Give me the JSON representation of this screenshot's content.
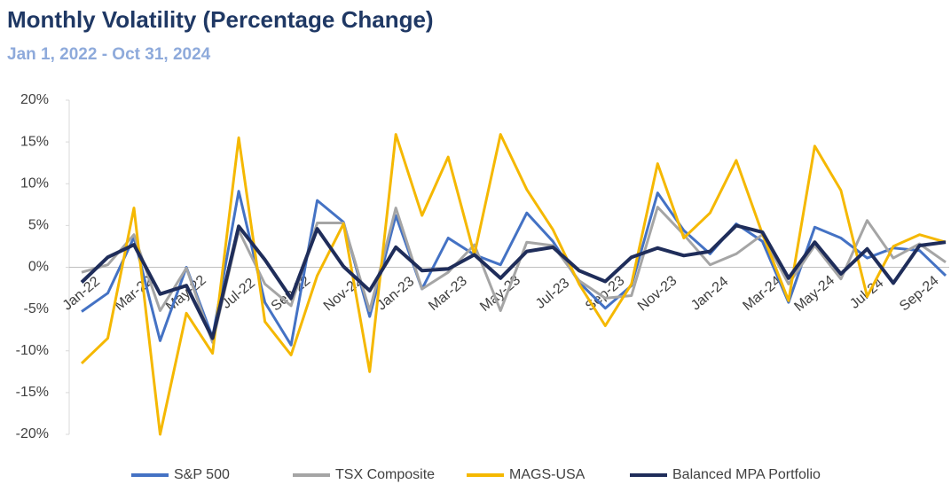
{
  "chart_data": {
    "type": "line",
    "title": "Monthly Volatility (Percentage Change)",
    "subtitle": "Jan 1, 2022 - Oct 31, 2024",
    "categories": [
      "Jan-22",
      null,
      "Mar-22",
      null,
      "May-22",
      null,
      "Jul-22",
      null,
      "Sep-22",
      null,
      "Nov-22",
      null,
      "Jan-23",
      null,
      "Mar-23",
      null,
      "May-23",
      null,
      "Jul-23",
      null,
      "Sep-23",
      null,
      "Nov-23",
      null,
      "Jan-24",
      null,
      "Mar-24",
      null,
      "May-24",
      null,
      "Jul-24",
      null,
      "Sep-24",
      null
    ],
    "series": [
      {
        "name": "S&P 500",
        "color": "#4472c4",
        "values": [
          -5.3,
          -3.1,
          3.6,
          -8.8,
          0,
          -8.4,
          9.1,
          -4.2,
          -9.3,
          8.0,
          5.4,
          -5.9,
          6.2,
          -2.6,
          3.5,
          1.5,
          0.3,
          6.5,
          3.1,
          -1.8,
          -4.9,
          -2.2,
          8.9,
          4.4,
          1.6,
          5.2,
          3.1,
          -4.2,
          4.8,
          3.5,
          1.1,
          2.3,
          2.0,
          -1.0
        ]
      },
      {
        "name": "TSX Composite",
        "color": "#a5a5a5",
        "values": [
          -0.6,
          0.3,
          3.9,
          -5.2,
          -0.1,
          -9.0,
          4.4,
          -2.0,
          -4.6,
          5.3,
          5.3,
          -5.2,
          7.1,
          -2.6,
          -0.6,
          2.7,
          -5.2,
          3.0,
          2.6,
          -1.6,
          -3.7,
          -3.4,
          7.2,
          3.9,
          0.3,
          1.6,
          3.9,
          -2.0,
          2.6,
          -1.4,
          5.6,
          1.1,
          2.8,
          0.6
        ]
      },
      {
        "name": "MAGS-USA",
        "color": "#f5b800",
        "values": [
          -11.5,
          -8.5,
          7.1,
          -20,
          -5.5,
          -10.3,
          15.5,
          -6.5,
          -10.5,
          -1.0,
          5.2,
          -12.5,
          15.9,
          6.2,
          13.2,
          1.5,
          15.9,
          9.3,
          4.5,
          -2.0,
          -7.0,
          -2.0,
          12.4,
          3.5,
          6.5,
          12.8,
          4.0,
          -4.0,
          14.5,
          9.2,
          -3.5,
          2.5,
          3.9,
          3.0
        ]
      },
      {
        "name": "Balanced MPA Portfolio",
        "color": "#1f2d5a",
        "values": [
          -1.8,
          1.2,
          2.7,
          -3.2,
          -2.2,
          -8.5,
          4.9,
          0.9,
          -3.7,
          4.6,
          0.1,
          -2.8,
          2.4,
          -0.4,
          -0.2,
          1.5,
          -1.3,
          1.9,
          2.4,
          -0.4,
          -1.7,
          1.2,
          2.3,
          1.4,
          1.9,
          5.0,
          4.2,
          -1.3,
          3.0,
          -0.8,
          2.2,
          -1.9,
          2.6,
          3.0
        ]
      }
    ],
    "ylim": [
      -20,
      20
    ],
    "yticks": [
      {
        "value": -20,
        "label": "-20%"
      },
      {
        "value": -15,
        "label": "-15%"
      },
      {
        "value": -10,
        "label": "-10%"
      },
      {
        "value": -5,
        "label": "-5%"
      },
      {
        "value": 0,
        "label": "0%"
      },
      {
        "value": 5,
        "label": "5%"
      },
      {
        "value": 10,
        "label": "10%"
      },
      {
        "value": 15,
        "label": "15%"
      },
      {
        "value": 20,
        "label": "20%"
      }
    ],
    "legend": "bottom"
  }
}
